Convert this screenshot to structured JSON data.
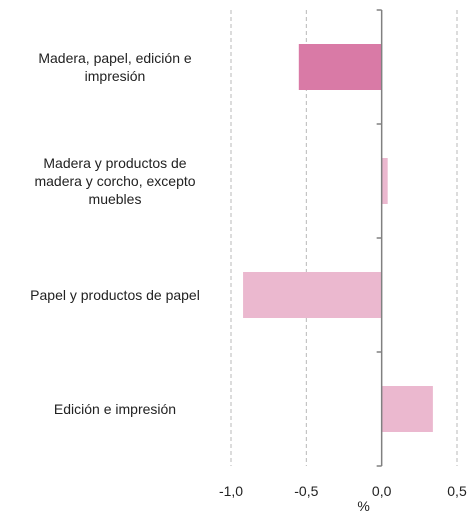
{
  "chart_data": {
    "type": "bar",
    "orientation": "horizontal",
    "categories": [
      "Madera, papel, edición e impresión",
      "Madera y productos de madera y corcho, excepto muebles",
      "Papel y productos de papel",
      "Edición e impresión"
    ],
    "category_lines": [
      [
        "Madera, papel, edición e",
        "impresión"
      ],
      [
        "Madera y productos de",
        "madera y corcho, excepto",
        "muebles"
      ],
      [
        "Papel y productos de papel"
      ],
      [
        "Edición e impresión"
      ]
    ],
    "values": [
      -0.55,
      0.04,
      -0.92,
      0.34
    ],
    "bar_colors": [
      "#d97aa6",
      "#ebb8cf",
      "#ebb8cf",
      "#ebb8cf"
    ],
    "xlim": [
      -1.0,
      0.5
    ],
    "xticks": [
      -1.0,
      -0.5,
      0.0,
      0.5
    ],
    "xtick_labels": [
      "-1,0",
      "-0,5",
      "0,0",
      "0,5"
    ],
    "xlabel": "%",
    "title": "",
    "grid": "vertical dashed",
    "axis_color": "#808080",
    "grid_color": "#b8b8b8"
  }
}
